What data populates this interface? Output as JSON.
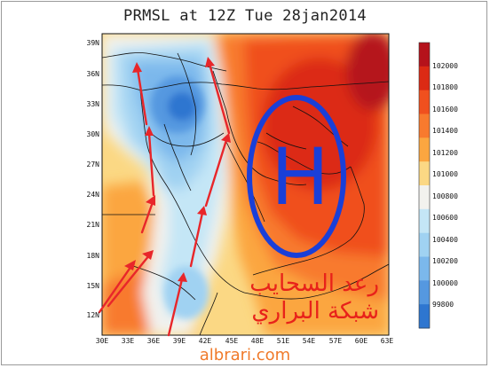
{
  "title": "PRMSL at 12Z Tue 28jan2014",
  "latitude_labels": [
    "39N",
    "36N",
    "33N",
    "30N",
    "27N",
    "24N",
    "21N",
    "18N",
    "15N",
    "12N"
  ],
  "longitude_labels": [
    "30E",
    "33E",
    "36E",
    "39E",
    "42E",
    "45E",
    "48E",
    "51E",
    "54E",
    "57E",
    "60E",
    "63E"
  ],
  "colorbar": {
    "labels": [
      "102000",
      "101800",
      "101600",
      "101400",
      "101200",
      "101000",
      "100800",
      "100600",
      "100400",
      "100200",
      "100000",
      "99800"
    ],
    "colors": [
      "#b5121b",
      "#dc2a14",
      "#f0501e",
      "#f87a2e",
      "#fba640",
      "#fbd884",
      "#f2f2ee",
      "#c4e6f6",
      "#a0d2f2",
      "#7bb8ec",
      "#5598e0",
      "#2e76d0"
    ]
  },
  "annotations": {
    "high_letter": "H",
    "arabic_line1": "رعد السحايب",
    "arabic_line2": "شبكة البراري"
  },
  "colors": {
    "arrows": "#e8262a",
    "high_marker": "#1a3fd8",
    "arabic_text": "#e8221a",
    "watermark": "#f07a2a"
  },
  "watermark": "albrari.com"
}
